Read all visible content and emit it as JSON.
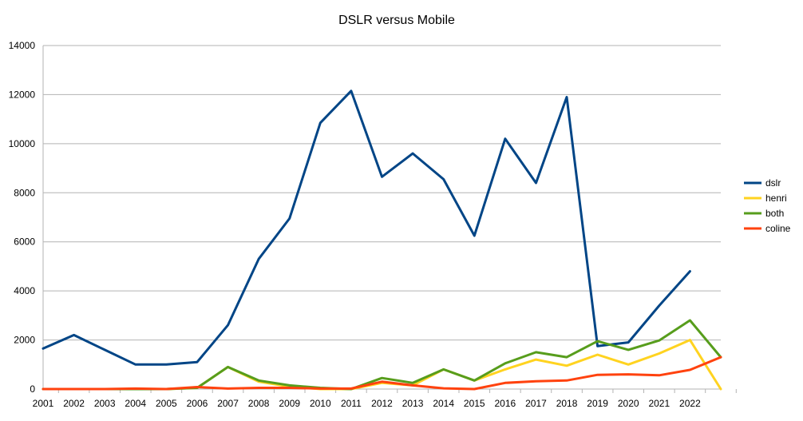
{
  "chart_data": {
    "type": "line",
    "title": "DSLR versus Mobile",
    "xlabel": "",
    "ylabel": "",
    "ylim": [
      0,
      14000
    ],
    "y_ticks": [
      0,
      2000,
      4000,
      6000,
      8000,
      10000,
      12000,
      14000
    ],
    "categories": [
      "2001",
      "2002",
      "2003",
      "2004",
      "2005",
      "2006",
      "2007",
      "2008",
      "2009",
      "2010",
      "2011",
      "2012",
      "2013",
      "2014",
      "2015",
      "2016",
      "2017",
      "2018",
      "2019",
      "2020",
      "2021",
      "2022",
      ""
    ],
    "grid": "horizontal",
    "legend_position": "right",
    "series": [
      {
        "name": "dslr",
        "color": "#004586",
        "values": [
          1650,
          2200,
          1600,
          1000,
          1000,
          1100,
          2600,
          5300,
          6950,
          10850,
          12150,
          8650,
          9600,
          8550,
          6250,
          10200,
          8400,
          11900,
          1750,
          1900,
          3400,
          4800,
          null
        ]
      },
      {
        "name": "henri",
        "color": "#ffd320",
        "values": [
          0,
          0,
          0,
          0,
          0,
          50,
          900,
          300,
          100,
          0,
          0,
          250,
          150,
          800,
          350,
          800,
          1200,
          950,
          1400,
          1000,
          1450,
          2000,
          0
        ]
      },
      {
        "name": "both",
        "color": "#579d1c",
        "values": [
          0,
          0,
          0,
          0,
          0,
          50,
          900,
          350,
          150,
          50,
          0,
          450,
          250,
          800,
          350,
          1050,
          1500,
          1300,
          1950,
          1600,
          1980,
          2800,
          1300
        ]
      },
      {
        "name": "coline",
        "color": "#ff420e",
        "values": [
          0,
          0,
          0,
          20,
          0,
          80,
          20,
          50,
          50,
          20,
          20,
          300,
          150,
          30,
          0,
          250,
          320,
          350,
          580,
          600,
          560,
          780,
          1300
        ]
      }
    ]
  }
}
